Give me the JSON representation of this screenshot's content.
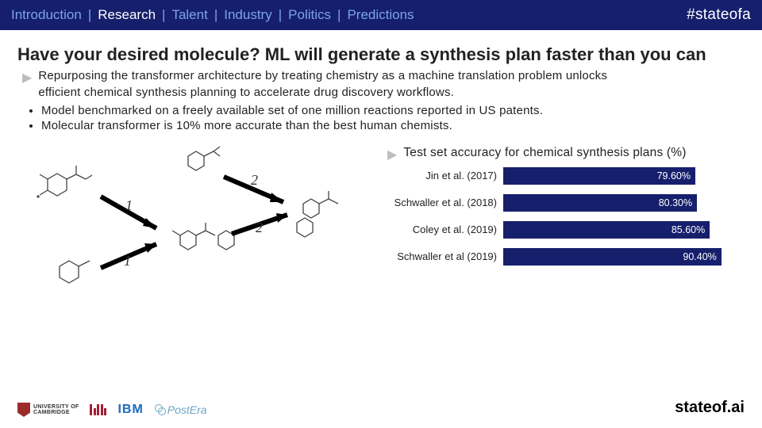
{
  "header": {
    "nav": [
      "Introduction",
      "Research",
      "Talent",
      "Industry",
      "Politics",
      "Predictions"
    ],
    "active_index": 1,
    "hashtag": "#stateofa"
  },
  "title": "Have your desired molecule? ML will generate a synthesis plan faster than you can",
  "subtitle": "Repurposing the transformer architecture by treating chemistry as a machine translation problem unlocks\nefficient chemical synthesis planning to accelerate drug discovery workflows.",
  "bullets": [
    "Model benchmarked on a freely available set of one million reactions reported in US patents.",
    "Molecular transformer is 10% more accurate than the best human chemists."
  ],
  "diagram": {
    "arrows": [
      {
        "label": "1"
      },
      {
        "label": "1"
      },
      {
        "label": "2"
      },
      {
        "label": "2"
      }
    ]
  },
  "chart": {
    "title": "Test set accuracy for chemical synthesis plans (%)",
    "type": "bar",
    "max": 100,
    "bar_color": "#161f6c",
    "value_color": "#ffffff",
    "rows": [
      {
        "label": "Jin et al. (2017)",
        "value": 79.6,
        "display": "79.60%"
      },
      {
        "label": "Schwaller et al. (2018)",
        "value": 80.3,
        "display": "80.30%"
      },
      {
        "label": "Coley et al. (2019)",
        "value": 85.6,
        "display": "85.60%"
      },
      {
        "label": "Schwaller et al (2019)",
        "value": 90.4,
        "display": "90.40%"
      }
    ]
  },
  "footer": {
    "logos": {
      "cambridge_line1": "UNIVERSITY OF",
      "cambridge_line2": "CAMBRIDGE",
      "mit": "MIT",
      "ibm": "IBM",
      "postera": "PostEra"
    },
    "site": "stateof.ai"
  }
}
